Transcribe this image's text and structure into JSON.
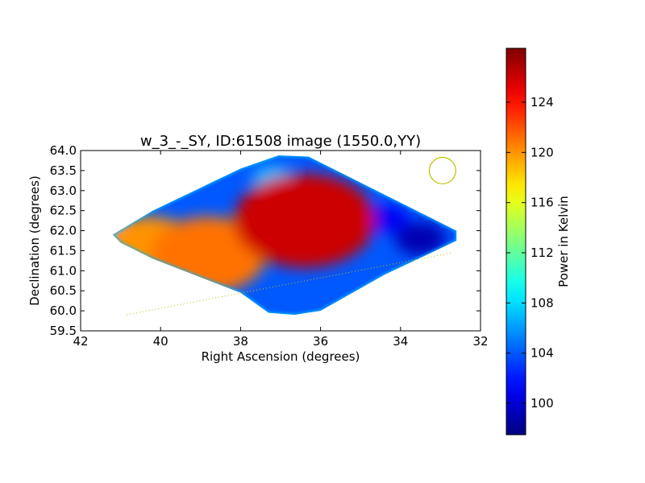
{
  "chart_data": {
    "type": "heatmap",
    "title": "w_3_-_SY, ID:61508 image (1550.0,YY)",
    "xlabel": "Right Ascension (degrees)",
    "ylabel": "Declination (degrees)",
    "xlim": [
      42,
      32
    ],
    "ylim": [
      59.5,
      64.0
    ],
    "x_ticks": [
      "42",
      "40",
      "38",
      "36",
      "34",
      "32"
    ],
    "x_tick_values": [
      42,
      40,
      38,
      36,
      34,
      32
    ],
    "y_ticks": [
      "59.5",
      "60.0",
      "60.5",
      "61.0",
      "61.5",
      "62.0",
      "62.5",
      "63.0",
      "63.5",
      "64.0"
    ],
    "y_tick_values": [
      59.5,
      60.0,
      60.5,
      61.0,
      61.5,
      62.0,
      62.5,
      63.0,
      63.5,
      64.0
    ],
    "colorbar": {
      "label": "Power in Kelvin",
      "vmin": 97.5,
      "vmax": 128.3,
      "ticks": [
        "100",
        "104",
        "108",
        "112",
        "116",
        "120",
        "124"
      ],
      "tick_values": [
        100,
        104,
        108,
        112,
        116,
        120,
        124
      ],
      "colormap": "jet"
    },
    "background_level": 104,
    "footprint": [
      [
        41.2,
        61.9
      ],
      [
        40.2,
        62.5
      ],
      [
        38.0,
        63.55
      ],
      [
        37.05,
        63.88
      ],
      [
        36.3,
        63.85
      ],
      [
        35.6,
        63.5
      ],
      [
        32.6,
        62.0
      ],
      [
        32.6,
        61.75
      ],
      [
        34.4,
        60.9
      ],
      [
        36.0,
        60.0
      ],
      [
        36.65,
        59.9
      ],
      [
        37.3,
        59.95
      ],
      [
        38.0,
        60.45
      ],
      [
        40.2,
        61.3
      ],
      [
        41.0,
        61.7
      ]
    ],
    "features": [
      {
        "ra": 36.4,
        "dec": 62.25,
        "value": 126
      },
      {
        "ra": 36.6,
        "dec": 62.6,
        "value": 115
      },
      {
        "ra": 37.0,
        "dec": 62.8,
        "value": 110
      },
      {
        "ra": 38.8,
        "dec": 61.4,
        "value": 121
      },
      {
        "ra": 39.1,
        "dec": 61.5,
        "value": 113
      },
      {
        "ra": 40.3,
        "dec": 61.45,
        "value": 120
      },
      {
        "ra": 40.6,
        "dec": 61.6,
        "value": 112
      },
      {
        "ra": 41.1,
        "dec": 61.9,
        "value": 108
      },
      {
        "ra": 37.2,
        "dec": 63.3,
        "value": 107
      },
      {
        "ra": 33.5,
        "dec": 61.8,
        "value": 99
      },
      {
        "ra": 34.3,
        "dec": 62.3,
        "value": 101
      }
    ],
    "overlays": {
      "circle": {
        "ra": 32.95,
        "dec": 63.5,
        "radius_deg": 0.33,
        "color": "#bfbf00"
      },
      "dotted_line": {
        "color": "#bfbf00",
        "points": [
          [
            40.85,
            59.9
          ],
          [
            32.7,
            61.45
          ]
        ]
      }
    }
  }
}
